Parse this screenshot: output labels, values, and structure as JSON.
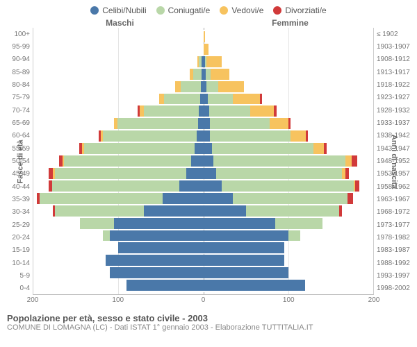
{
  "type": "population-pyramid",
  "legend": [
    {
      "label": "Celibi/Nubili",
      "color": "#4a78a9"
    },
    {
      "label": "Coniugati/e",
      "color": "#b9d7a8"
    },
    {
      "label": "Vedovi/e",
      "color": "#f7c35f"
    },
    {
      "label": "Divorziati/e",
      "color": "#d13a3a"
    }
  ],
  "headers": {
    "left": "Maschi",
    "right": "Femmine"
  },
  "y_left_title": "Fasce di età",
  "y_right_title": "Anni di nascita",
  "footer_title": "Popolazione per età, sesso e stato civile - 2003",
  "footer_sub": "COMUNE DI LOMAGNA (LC) - Dati ISTAT 1° gennaio 2003 - Elaborazione TUTTITALIA.IT",
  "axis": {
    "max": 200,
    "ticks_left": [
      200,
      100,
      0
    ],
    "ticks_right": [
      0,
      100,
      200
    ],
    "grid_at": [
      -200,
      -100,
      0,
      100,
      200
    ]
  },
  "colors": {
    "background": "#ffffff",
    "grid": "#e5e5e5",
    "axis_text": "#777777",
    "header_text": "#666666",
    "footer_title": "#555555",
    "footer_sub": "#888888"
  },
  "rows": [
    {
      "age": "100+",
      "birth": "≤ 1902",
      "m": {
        "c": 0,
        "k": 0,
        "v": 0,
        "d": 0
      },
      "f": {
        "c": 0,
        "k": 0,
        "v": 2,
        "d": 0
      }
    },
    {
      "age": "95-99",
      "birth": "1903-1907",
      "m": {
        "c": 0,
        "k": 0,
        "v": 0,
        "d": 0
      },
      "f": {
        "c": 0,
        "k": 0,
        "v": 6,
        "d": 0
      }
    },
    {
      "age": "90-94",
      "birth": "1908-1912",
      "m": {
        "c": 2,
        "k": 3,
        "v": 2,
        "d": 0
      },
      "f": {
        "c": 2,
        "k": 2,
        "v": 18,
        "d": 0
      }
    },
    {
      "age": "85-89",
      "birth": "1913-1917",
      "m": {
        "c": 2,
        "k": 10,
        "v": 4,
        "d": 0
      },
      "f": {
        "c": 3,
        "k": 6,
        "v": 22,
        "d": 0
      }
    },
    {
      "age": "80-84",
      "birth": "1918-1922",
      "m": {
        "c": 3,
        "k": 24,
        "v": 6,
        "d": 0
      },
      "f": {
        "c": 4,
        "k": 14,
        "v": 30,
        "d": 0
      }
    },
    {
      "age": "75-79",
      "birth": "1923-1927",
      "m": {
        "c": 4,
        "k": 42,
        "v": 6,
        "d": 0
      },
      "f": {
        "c": 5,
        "k": 30,
        "v": 32,
        "d": 2
      }
    },
    {
      "age": "70-74",
      "birth": "1928-1932",
      "m": {
        "c": 5,
        "k": 65,
        "v": 5,
        "d": 2
      },
      "f": {
        "c": 7,
        "k": 48,
        "v": 28,
        "d": 3
      }
    },
    {
      "age": "65-69",
      "birth": "1933-1937",
      "m": {
        "c": 6,
        "k": 95,
        "v": 4,
        "d": 0
      },
      "f": {
        "c": 8,
        "k": 70,
        "v": 22,
        "d": 3
      }
    },
    {
      "age": "60-64",
      "birth": "1938-1942",
      "m": {
        "c": 8,
        "k": 110,
        "v": 3,
        "d": 2
      },
      "f": {
        "c": 8,
        "k": 95,
        "v": 18,
        "d": 2
      }
    },
    {
      "age": "55-59",
      "birth": "1943-1947",
      "m": {
        "c": 10,
        "k": 130,
        "v": 3,
        "d": 3
      },
      "f": {
        "c": 10,
        "k": 120,
        "v": 12,
        "d": 3
      }
    },
    {
      "age": "50-54",
      "birth": "1948-1952",
      "m": {
        "c": 14,
        "k": 150,
        "v": 2,
        "d": 4
      },
      "f": {
        "c": 12,
        "k": 155,
        "v": 8,
        "d": 6
      }
    },
    {
      "age": "45-49",
      "birth": "1953-1957",
      "m": {
        "c": 20,
        "k": 155,
        "v": 2,
        "d": 5
      },
      "f": {
        "c": 15,
        "k": 148,
        "v": 4,
        "d": 4
      }
    },
    {
      "age": "40-44",
      "birth": "1958-1962",
      "m": {
        "c": 28,
        "k": 150,
        "v": 0,
        "d": 4
      },
      "f": {
        "c": 22,
        "k": 155,
        "v": 2,
        "d": 5
      }
    },
    {
      "age": "35-39",
      "birth": "1963-1967",
      "m": {
        "c": 48,
        "k": 145,
        "v": 0,
        "d": 3
      },
      "f": {
        "c": 35,
        "k": 135,
        "v": 0,
        "d": 6
      }
    },
    {
      "age": "30-34",
      "birth": "1968-1972",
      "m": {
        "c": 70,
        "k": 105,
        "v": 0,
        "d": 2
      },
      "f": {
        "c": 50,
        "k": 110,
        "v": 0,
        "d": 3
      }
    },
    {
      "age": "25-29",
      "birth": "1973-1977",
      "m": {
        "c": 105,
        "k": 40,
        "v": 0,
        "d": 0
      },
      "f": {
        "c": 85,
        "k": 55,
        "v": 0,
        "d": 0
      }
    },
    {
      "age": "20-24",
      "birth": "1978-1982",
      "m": {
        "c": 110,
        "k": 8,
        "v": 0,
        "d": 0
      },
      "f": {
        "c": 100,
        "k": 14,
        "v": 0,
        "d": 0
      }
    },
    {
      "age": "15-19",
      "birth": "1983-1987",
      "m": {
        "c": 100,
        "k": 0,
        "v": 0,
        "d": 0
      },
      "f": {
        "c": 95,
        "k": 0,
        "v": 0,
        "d": 0
      }
    },
    {
      "age": "10-14",
      "birth": "1988-1992",
      "m": {
        "c": 115,
        "k": 0,
        "v": 0,
        "d": 0
      },
      "f": {
        "c": 95,
        "k": 0,
        "v": 0,
        "d": 0
      }
    },
    {
      "age": "5-9",
      "birth": "1993-1997",
      "m": {
        "c": 110,
        "k": 0,
        "v": 0,
        "d": 0
      },
      "f": {
        "c": 100,
        "k": 0,
        "v": 0,
        "d": 0
      }
    },
    {
      "age": "0-4",
      "birth": "1998-2002",
      "m": {
        "c": 90,
        "k": 0,
        "v": 0,
        "d": 0
      },
      "f": {
        "c": 120,
        "k": 0,
        "v": 0,
        "d": 0
      }
    }
  ]
}
